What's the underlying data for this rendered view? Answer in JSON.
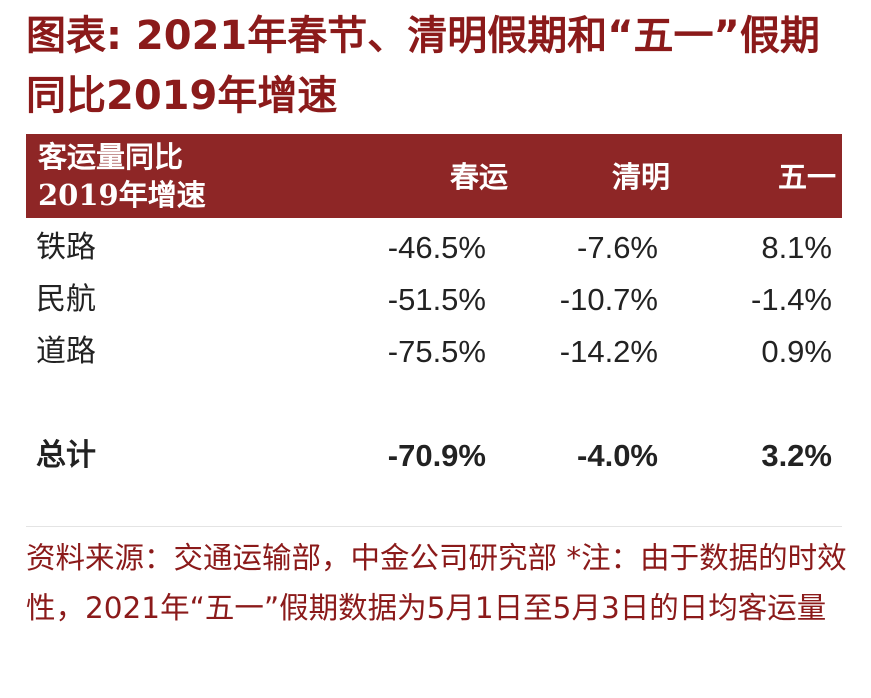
{
  "title": "图表: 2021年春节、清明假期和“五一”假期同比2019年增速",
  "table": {
    "header_label_line1": "客运量同比",
    "header_label_line2": "2019年增速",
    "columns": [
      "春运",
      "清明",
      "五一"
    ],
    "rows": [
      {
        "label": "铁路",
        "values": [
          "-46.5%",
          "-7.6%",
          "8.1%"
        ]
      },
      {
        "label": "民航",
        "values": [
          "-51.5%",
          "-10.7%",
          "-1.4%"
        ]
      },
      {
        "label": "道路",
        "values": [
          "-75.5%",
          "-14.2%",
          "0.9%"
        ]
      }
    ],
    "total": {
      "label": "总计",
      "values": [
        "-70.9%",
        "-4.0%",
        "3.2%"
      ]
    }
  },
  "note": "资料来源：交通运输部，中金公司研究部 *注：由于数据的时效性，2021年“五一”假期数据为5月1日至5月3日的日均客运量",
  "colors": {
    "title": "#8b1a1a",
    "header_band": "#8e2626",
    "header_text": "#ffffff",
    "body_text": "#222222",
    "note_text": "#8b1a1a"
  }
}
